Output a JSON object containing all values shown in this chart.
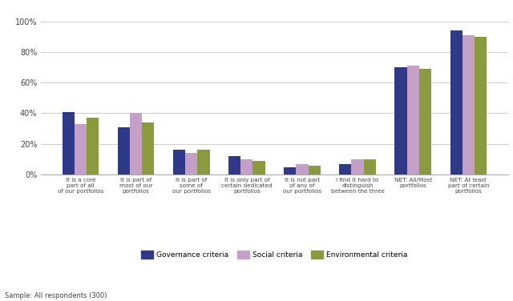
{
  "categories": [
    "It is a core\npart of all\nof our portfolios",
    "It is part of\nmost of our\nportfolios",
    "It is part of\nsome of\nour portfolios",
    "It is only part of\ncertain dedicated\nportfolios",
    "It is not part\nof any of\nour portfolios",
    "I find it hard to\ndistinguish\nbetween the three",
    "NET: All/Most\nportfolios",
    "NET: At least\npart of certain\nportfolios"
  ],
  "governance": [
    41,
    31,
    16,
    12,
    5,
    7,
    70,
    94
  ],
  "social": [
    33,
    40,
    14,
    10,
    7,
    10,
    71,
    91
  ],
  "environmental": [
    37,
    34,
    16,
    9,
    6,
    10,
    69,
    90
  ],
  "governance_color": "#2e3a87",
  "social_color": "#c4a0c8",
  "environmental_color": "#8a9a3c",
  "background_color": "#ffffff",
  "plot_bg_color": "#ffffff",
  "grid_color": "#cccccc",
  "yticks": [
    0,
    20,
    40,
    60,
    80,
    100
  ],
  "ytick_labels": [
    "0%",
    "20%",
    "40%",
    "60%",
    "80%",
    "100%"
  ],
  "legend_labels": [
    "Governance criteria",
    "Social criteria",
    "Environmental criteria"
  ],
  "footnote": "Sample: All respondents (300)"
}
